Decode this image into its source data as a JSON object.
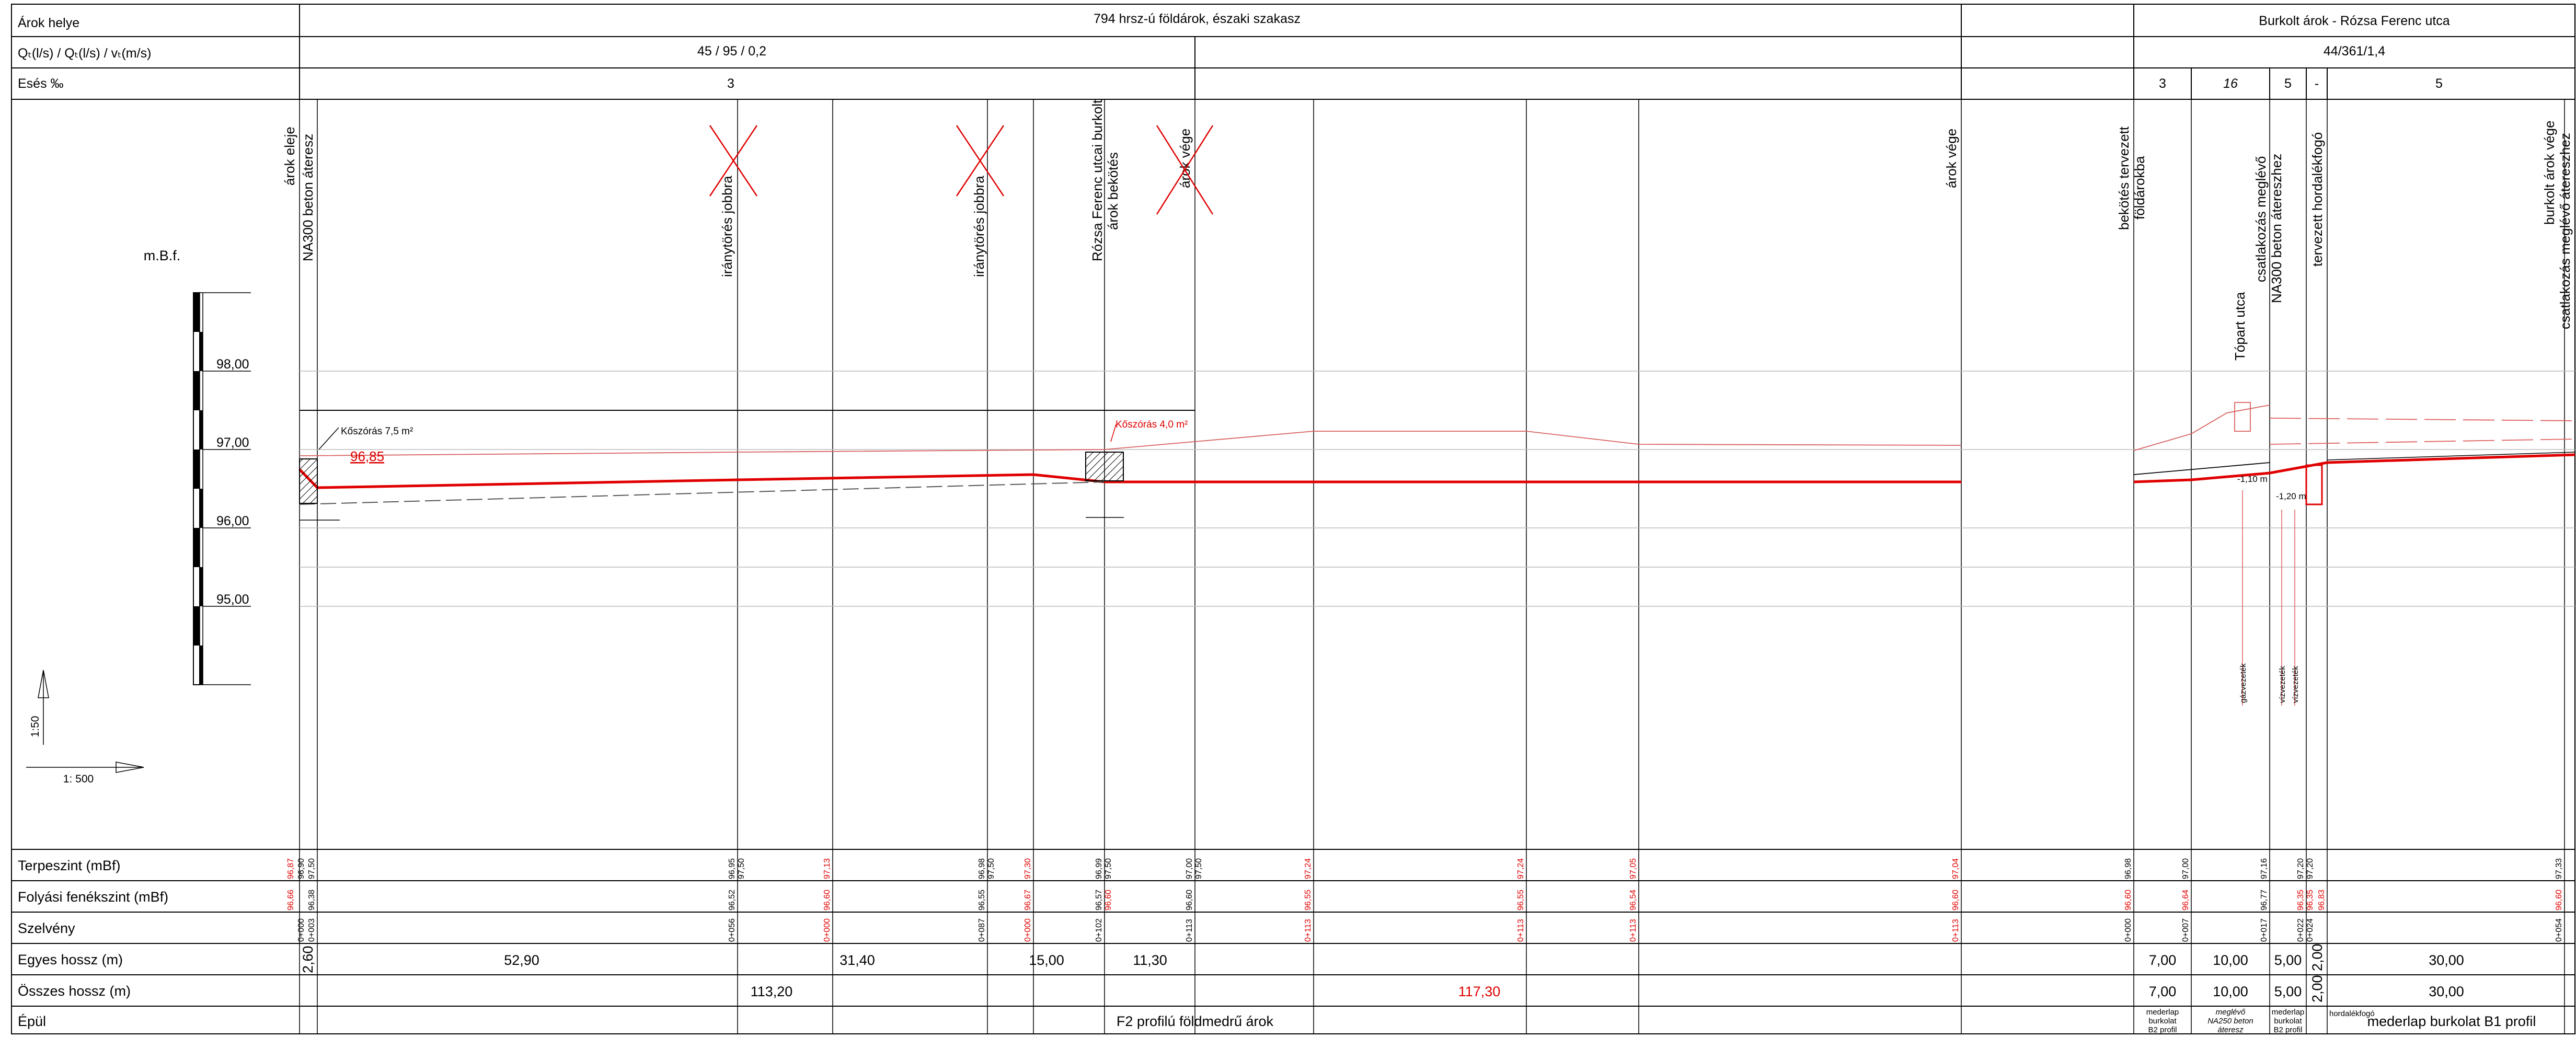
{
  "header": {
    "row1_label": "Árok helye",
    "row1_left": "794 hrsz-ú földárok, északi szakasz",
    "row1_right": "Burkolt árok - Rózsa Ferenc utca",
    "row2_label": "Qₜ(l/s) / Qₜ(l/s) / vₜ(m/s)",
    "row2_left": "45 / 95 / 0,2",
    "row2_right": "44/361/1,4",
    "row3_label": "Esés ‰",
    "row3_vals": [
      "3",
      "3",
      "16",
      "5",
      "-",
      "5"
    ]
  },
  "scale": {
    "title": "m.B.f.",
    "levels": [
      "98,00",
      "97,00",
      "96,00",
      "95,00"
    ],
    "vertical_ratio": "1:50",
    "horizontal_ratio": "1: 500"
  },
  "vertical_labels": [
    {
      "lines": [
        "árok eleje",
        "NA300 beton áteresz"
      ]
    },
    {
      "lines": [
        "iránytörés jobbra"
      ]
    },
    {
      "lines": [
        "iránytörés jobbra"
      ]
    },
    {
      "lines": [
        "Rózsa Ferenc utcai burkolt",
        "árok bekötés"
      ]
    },
    {
      "lines": [
        "árok vége"
      ]
    },
    {
      "lines": [
        "árok vége"
      ]
    },
    {
      "lines": [
        "bekötés tervezett",
        "földárokba"
      ]
    },
    {
      "lines": [
        "Tópart utca"
      ]
    },
    {
      "lines": [
        "csatlakozás meglévő",
        "NA300 beton átereszhez"
      ]
    },
    {
      "lines": [
        "tervezett hordalékfogó"
      ]
    },
    {
      "lines": [
        "burkolt árok vége",
        "csatlakozás meglévő átereszhez"
      ]
    }
  ],
  "annotations": {
    "koszoras_left": "Kőszórás 7,5 m²",
    "koszoras_right": "Kőszórás 4,0 m²",
    "level_label": "96,85",
    "depth1": "-1,10 m",
    "depth2": "-1,20 m",
    "util1": "gázvezeték",
    "util2": "vízvezeték",
    "util3": "vízvezeték"
  },
  "table": {
    "row_labels": [
      "Terpeszint (mBf)",
      "Folyási fenékszint (mBf)",
      "Szelvény",
      "Egyes hossz (m)",
      "Összes hossz (m)",
      "Épül"
    ],
    "terpeszint": [
      "96,87",
      "96,90",
      "97,50",
      "96,95",
      "97,50",
      "97,13",
      "96,98",
      "97,50",
      "97,30",
      "96,99",
      "97,50",
      "97,00",
      "97,50",
      "97,24",
      "97,24",
      "97,05",
      "97,04",
      "96,98",
      "97,00",
      "97,16",
      "97,20",
      "97,20",
      "97,33"
    ],
    "folyasi": [
      "96,66",
      "96,38",
      "96,52",
      "96,60",
      "96,55",
      "96,67",
      "96,57",
      "96,60",
      "96,60",
      "96,55",
      "96,55",
      "96,54",
      "96,60",
      "96,60",
      "96,64",
      "96,77",
      "96,35",
      "96,35",
      "96,83",
      "96,60"
    ],
    "szelveny": [
      "0+000",
      "0+003",
      "0+056",
      "0+000",
      "0+087",
      "0+000",
      "0+102",
      "0+113",
      "0+113",
      "0+113",
      "0+113",
      "0+113",
      "0+000",
      "0+007",
      "0+017",
      "0+022",
      "0+024",
      "0+054"
    ],
    "egyes": [
      "2,60",
      "52,90",
      "31,40",
      "15,00",
      "11,30",
      "7,00",
      "10,00",
      "5,00",
      "2,00",
      "30,00"
    ],
    "osszes": [
      "113,20",
      "117,30",
      "7,00",
      "10,00",
      "5,00",
      "2,00",
      "30,00"
    ],
    "epul_main": "F2 profilú földmedrű árok",
    "epul_c1": [
      "mederlap",
      "burkolat",
      "B2 profil"
    ],
    "epul_c2": [
      "meglévő",
      "NA250 beton",
      "áteresz"
    ],
    "epul_c3": [
      "mederlap",
      "burkolat",
      "B2 profil"
    ],
    "epul_c4": "hordalékfogó",
    "epul_c5": "mederlap burkolat B1 profil"
  },
  "colors": {
    "accent_red": "#e00000",
    "line_black": "#000000",
    "grid_grey": "#bbbbbb"
  }
}
